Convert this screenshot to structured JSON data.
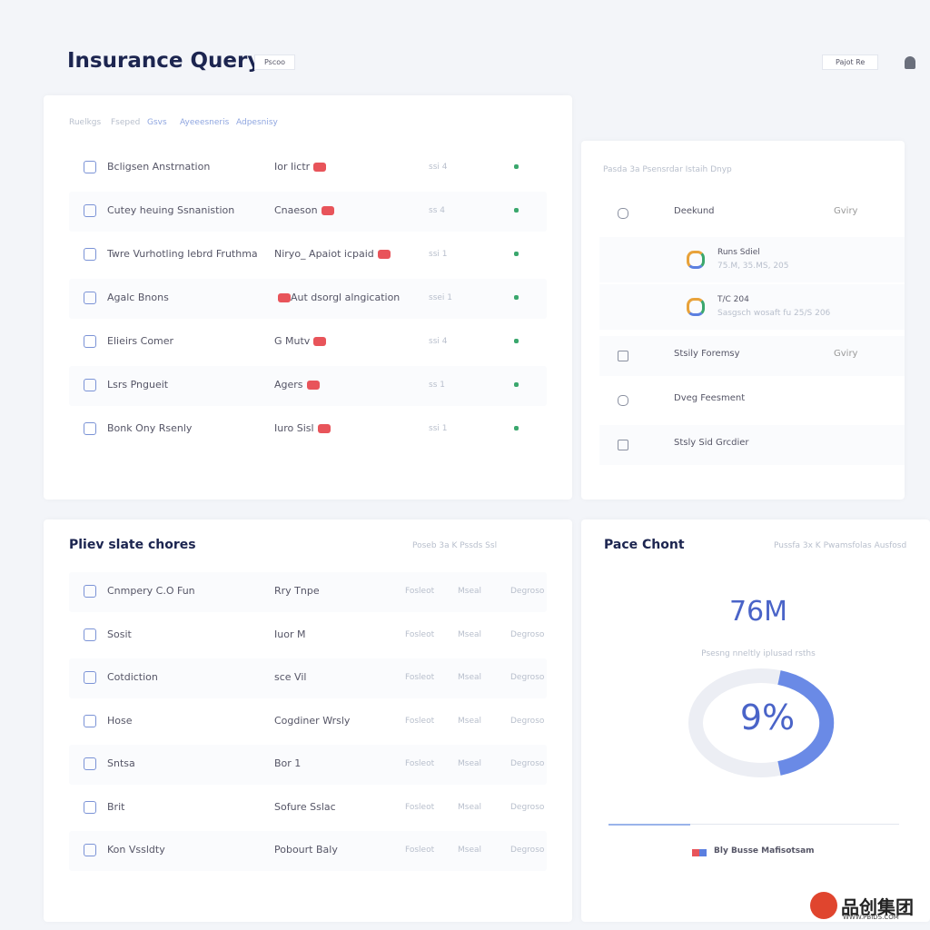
{
  "header": {
    "title": "Insurance Query",
    "dropdown": "Pscoo",
    "button": "Pajot Re"
  },
  "claims_panel": {
    "tabs": [
      "Ruelkgs",
      "Fseped",
      "Gsvs",
      "Ayeeesneris",
      "Adpesnisy"
    ],
    "rows": [
      [
        "Bcligsen Anstrnation",
        "Ior Iictr",
        "ssi 4"
      ],
      [
        "Cutey heuing Ssnanistion",
        "Cnaeson",
        "ss 4"
      ],
      [
        "Twre Vurhotling Iebrd Fruthma",
        "Niryo_ Apaiot icpaid",
        "ssi 1"
      ],
      [
        "Agalc Bnons",
        "Aut dsorgl alngication",
        "ssei 1"
      ],
      [
        "Elieirs Comer",
        "G Mutv",
        "ssi 4"
      ],
      [
        "Lsrs Pngueit",
        "Agers",
        "ss 1"
      ],
      [
        "Bonk Ony Rsenly",
        "Iuro Sisl",
        "ssi 1"
      ]
    ]
  },
  "side_panel": {
    "heading": "Pasda 3a  Psensrdar Istaih Dnyp",
    "items": [
      {
        "label": "Deekund",
        "status": "Gviry"
      }
    ],
    "sub_items": [
      {
        "title": "Runs Sdiel",
        "detail": "75.M, 35.MS, 205"
      },
      {
        "title": "T/C 204",
        "detail": "Sasgsch wosaft fu 25/S 206"
      }
    ],
    "more_items": [
      {
        "label": "Stsily Foremsy",
        "status": "Gviry"
      },
      {
        "label": "Dveg Feesment"
      },
      {
        "label": "Stsly Sid Grcdier"
      }
    ]
  },
  "chores_panel": {
    "title": "Pliev slate chores",
    "links": "Poseb 3a  K  Pssds Ssl",
    "actions": [
      "Fosleot",
      "Mseal",
      "Degroso"
    ],
    "rows": [
      [
        "Cnmpery C.O Fun",
        "Rry Tnpe"
      ],
      [
        "Sosit",
        "Iuor M"
      ],
      [
        "Cotdiction",
        "sce Vil"
      ],
      [
        "Hose",
        "Cogdiner Wrsly"
      ],
      [
        "Sntsa",
        "Bor 1"
      ],
      [
        "Brit",
        "Sofure Sslac"
      ],
      [
        "Kon Vssldty",
        "Pobourt Baly"
      ]
    ]
  },
  "chart_panel": {
    "title": "Pace Chont",
    "links": "Pussfa 3x  K  Pwamsfolas  Ausfosd",
    "metric": "76M",
    "caption": "Psesng nneltly iplusad rsths",
    "gauge_label": "9%",
    "legend": "Bly Busse Mafisotsam"
  },
  "watermark": {
    "brand": "品创集团",
    "url": "WWW.PBIDS.COM"
  }
}
